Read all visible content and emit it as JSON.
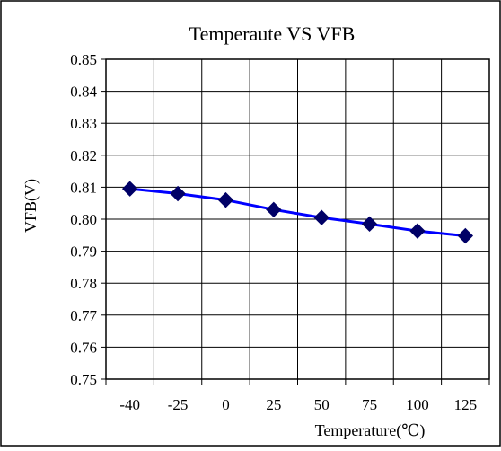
{
  "chart_data": {
    "type": "line",
    "title": "Temperaute VS VFB",
    "xlabel": "Temperature(℃)",
    "ylabel": "VFB(V)",
    "categories": [
      "-40",
      "-25",
      "0",
      "25",
      "50",
      "75",
      "100",
      "125"
    ],
    "series": [
      {
        "values": [
          0.8095,
          0.808,
          0.806,
          0.803,
          0.8005,
          0.7985,
          0.7963,
          0.7948
        ],
        "color": "#0000ff",
        "marker_color": "#000066",
        "marker": "diamond"
      }
    ],
    "ylim": [
      0.75,
      0.85
    ],
    "yticks": [
      "0.85",
      "0.84",
      "0.83",
      "0.82",
      "0.81",
      "0.80",
      "0.79",
      "0.78",
      "0.77",
      "0.76",
      "0.75"
    ],
    "grid": true,
    "legend": "none"
  }
}
